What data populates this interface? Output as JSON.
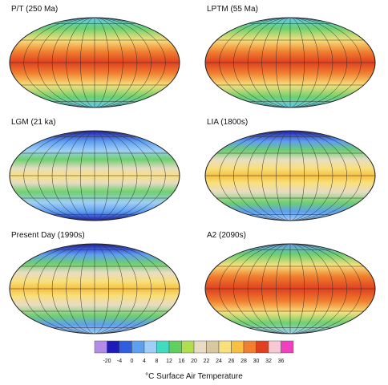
{
  "panels": [
    {
      "title": "P/T (250 Ma)"
    },
    {
      "title": "LPTM (55 Ma)"
    },
    {
      "title": "LGM (21 ka)"
    },
    {
      "title": "LIA (1800s)"
    },
    {
      "title": "Present Day (1990s)"
    },
    {
      "title": "A2 (2090s)"
    }
  ],
  "colorbar": {
    "colors": [
      "#b48ce8",
      "#1c1cb8",
      "#2f5fe0",
      "#5f9ff0",
      "#9fcff8",
      "#3fdcc0",
      "#5fcf5f",
      "#afdf4f",
      "#e8dcc4",
      "#d8c8a0",
      "#f8e07c",
      "#f8c040",
      "#f08030",
      "#e04020",
      "#f8c8d4",
      "#f040c0"
    ],
    "ticks": [
      -20,
      -4,
      0,
      4,
      8,
      12,
      16,
      20,
      22,
      24,
      26,
      28,
      30,
      32,
      36
    ],
    "label": "°C  Surface Air Temperature"
  }
}
